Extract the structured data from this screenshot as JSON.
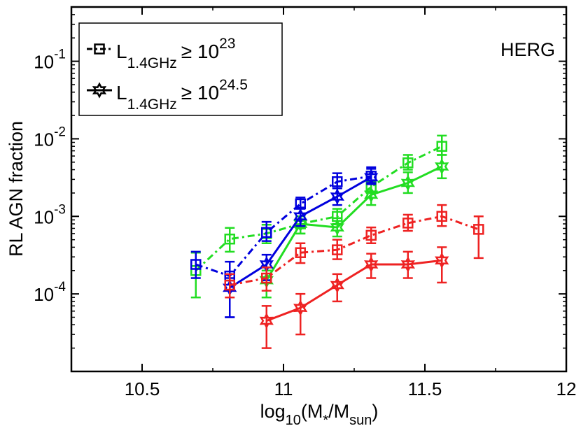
{
  "chart_data": {
    "type": "line",
    "title": "",
    "annotation": "HERG",
    "xlabel": {
      "main": "log",
      "sub1": "10",
      "mid1": "(M",
      "sub2": "*",
      "mid2": "/M",
      "sub3": "sun",
      "end": ")"
    },
    "ylabel": "RL AGN fraction",
    "xlim": [
      10.25,
      12.0
    ],
    "ylim_log10": [
      -5.0,
      -0.3
    ],
    "x_ticks": [
      {
        "value": 10.5,
        "label": "10.5"
      },
      {
        "value": 11.0,
        "label": "11"
      },
      {
        "value": 11.5,
        "label": "11.5"
      },
      {
        "value": 12.0,
        "label": "12"
      }
    ],
    "y_ticks": [
      {
        "exp": -4,
        "base": "10",
        "label": "-4"
      },
      {
        "exp": -3,
        "base": "10",
        "label": "-3"
      },
      {
        "exp": -2,
        "base": "10",
        "label": "-2"
      },
      {
        "exp": -1,
        "base": "10",
        "label": "-1"
      }
    ],
    "legend": {
      "position": "top-left",
      "entries": [
        {
          "marker": "square",
          "dash": "dashdot",
          "base": "L",
          "sub": "1.4GHz",
          "rel": "≥ 10",
          "sup": "23"
        },
        {
          "marker": "star",
          "dash": "solid",
          "base": "L",
          "sub": "1.4GHz",
          "rel": "≥ 10",
          "sup": "24.5"
        }
      ]
    },
    "colors": {
      "green": "#22dd22",
      "blue": "#0000dd",
      "red": "#ee2222",
      "black": "#000000"
    },
    "series": [
      {
        "name": "green L≥10^23",
        "color": "#22dd22",
        "marker": "square",
        "dash": "dashdot",
        "x": [
          10.69,
          10.81,
          10.94,
          11.06,
          11.19,
          11.31,
          11.44,
          11.56
        ],
        "y": [
          0.0002,
          0.00051,
          0.0006,
          0.0008,
          0.001,
          0.0024,
          0.0049,
          0.008
        ],
        "ylo": [
          9e-05,
          0.00035,
          0.00045,
          0.0006,
          0.0008,
          0.002,
          0.004,
          0.0062
        ],
        "yhi": [
          0.00034,
          0.00071,
          0.00078,
          0.001,
          0.00125,
          0.0029,
          0.0062,
          0.011
        ]
      },
      {
        "name": "green L≥10^24.5",
        "color": "#22dd22",
        "marker": "star",
        "dash": "solid",
        "x": [
          10.94,
          11.06,
          11.19,
          11.31,
          11.44,
          11.56
        ],
        "y": [
          0.00015,
          0.0008,
          0.00072,
          0.0019,
          0.0027,
          0.0044
        ],
        "ylo": [
          9e-05,
          0.0006,
          0.00055,
          0.0014,
          0.002,
          0.0031
        ],
        "yhi": [
          0.0002,
          0.001,
          0.00095,
          0.0026,
          0.0037,
          0.0062
        ]
      },
      {
        "name": "blue L≥10^23",
        "color": "#0000dd",
        "marker": "square",
        "dash": "dashdot",
        "x": [
          10.69,
          10.81,
          10.94,
          11.06,
          11.19,
          11.31
        ],
        "y": [
          0.00024,
          0.00017,
          0.00062,
          0.00145,
          0.0028,
          0.0033
        ],
        "ylo": [
          0.00016,
          5e-05,
          0.00048,
          0.00125,
          0.0023,
          0.0027
        ],
        "yhi": [
          0.00035,
          0.00026,
          0.00085,
          0.00175,
          0.0036,
          0.0043
        ]
      },
      {
        "name": "blue L≥10^24.5",
        "color": "#0000dd",
        "marker": "star",
        "dash": "solid",
        "x": [
          10.81,
          10.94,
          11.06,
          11.19,
          11.31
        ],
        "y": [
          0.00012,
          0.00024,
          0.001,
          0.0018,
          0.0032
        ],
        "ylo": [
          5e-05,
          0.00015,
          0.00075,
          0.0014,
          0.0026
        ],
        "yhi": [
          0.00016,
          0.00032,
          0.0013,
          0.0023,
          0.0041
        ]
      },
      {
        "name": "red L≥10^23",
        "color": "#ee2222",
        "marker": "square",
        "dash": "dashdot",
        "x": [
          10.81,
          10.94,
          11.06,
          11.19,
          11.31,
          11.44,
          11.56,
          11.69
        ],
        "y": [
          0.00013,
          0.00016,
          0.00034,
          0.00037,
          0.00057,
          0.00082,
          0.001,
          0.00068
        ],
        "ylo": [
          9e-05,
          0.00011,
          0.00025,
          0.00028,
          0.00045,
          0.00065,
          0.00075,
          0.00029
        ],
        "yhi": [
          0.00018,
          0.00022,
          0.00045,
          0.0005,
          0.00072,
          0.00105,
          0.0014,
          0.001
        ]
      },
      {
        "name": "red L≥10^24.5",
        "color": "#ee2222",
        "marker": "star",
        "dash": "solid",
        "x": [
          10.94,
          11.06,
          11.19,
          11.31,
          11.44,
          11.56
        ],
        "y": [
          4.5e-05,
          6.6e-05,
          0.00013,
          0.00024,
          0.00024,
          0.00027
        ],
        "ylo": [
          2e-05,
          3e-05,
          8e-05,
          0.00016,
          0.00016,
          0.00014
        ],
        "yhi": [
          7e-05,
          0.0001,
          0.00018,
          0.00033,
          0.00035,
          0.0004
        ]
      }
    ]
  }
}
